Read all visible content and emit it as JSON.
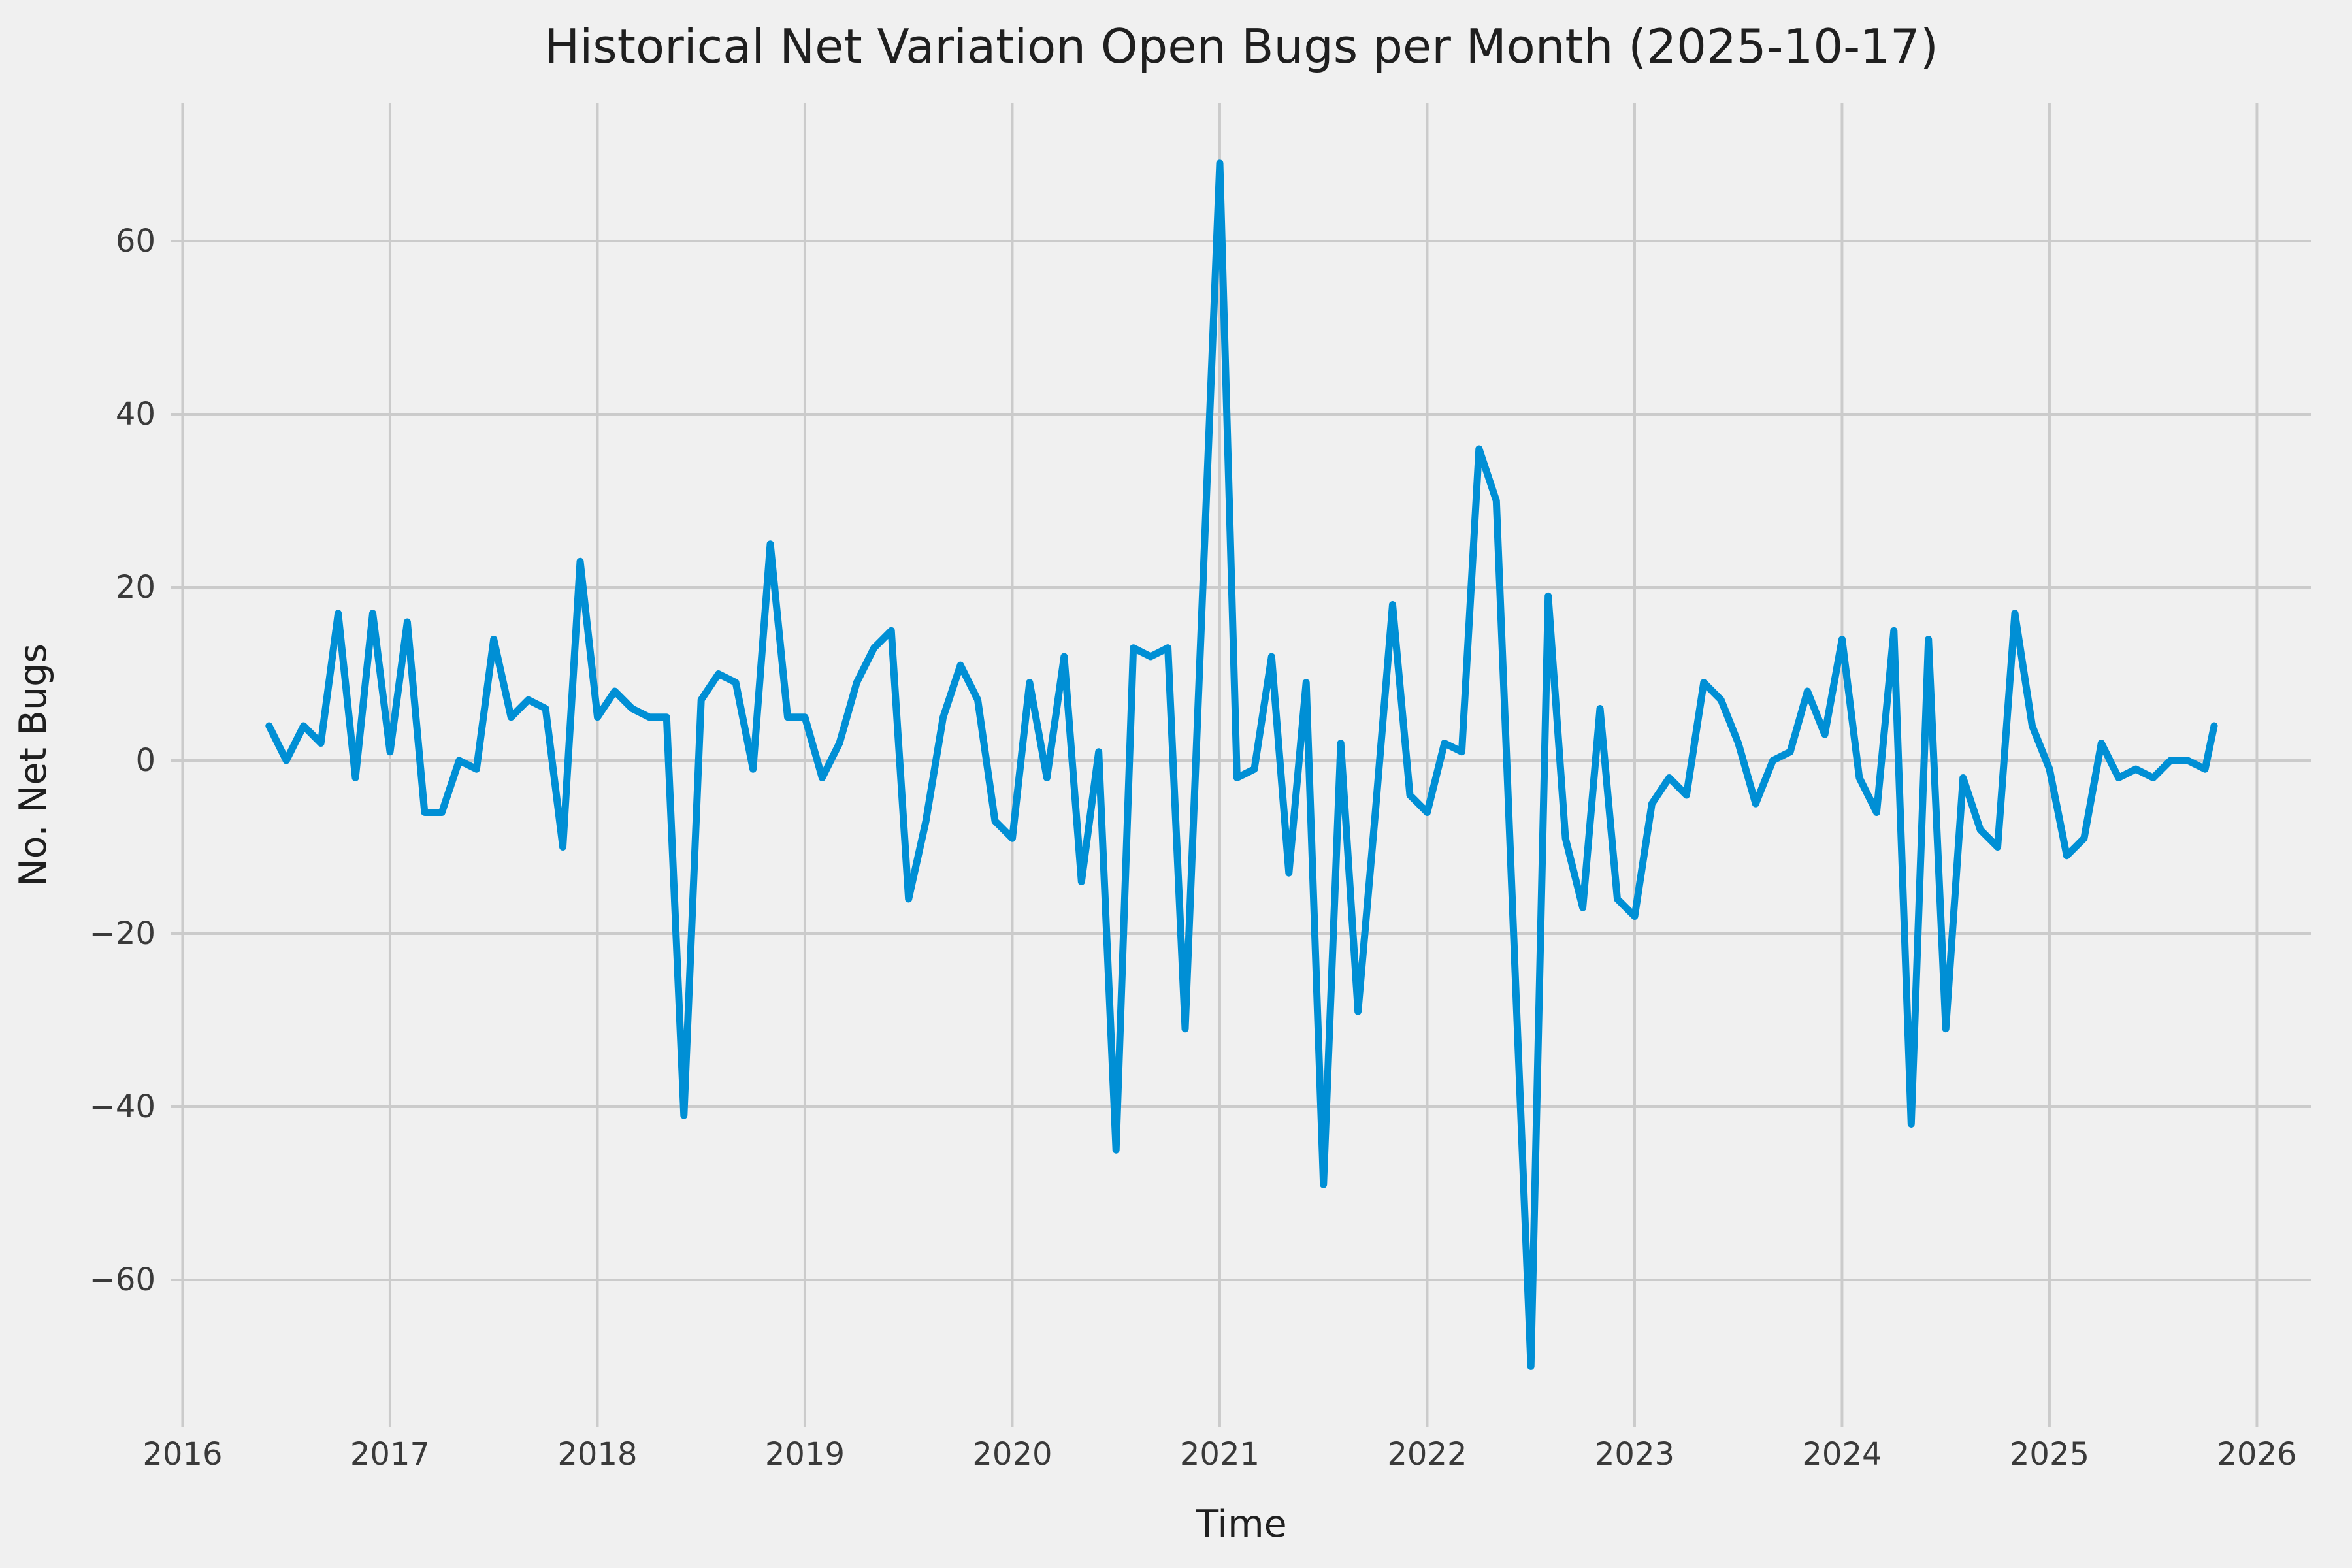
{
  "chart_data": {
    "type": "line",
    "title": "Historical Net Variation Open Bugs per Month (2025-10-17)",
    "xlabel": "Time",
    "ylabel": "No. Net Bugs",
    "x_ticks": [
      "2016",
      "2017",
      "2018",
      "2019",
      "2020",
      "2021",
      "2022",
      "2023",
      "2024",
      "2025",
      "2026"
    ],
    "y_ticks": [
      -60,
      -40,
      -20,
      0,
      20,
      40,
      60
    ],
    "xlim": [
      2015.945,
      2026.26
    ],
    "ylim": [
      -76.98,
      75.92
    ],
    "grid": true,
    "legend_position": "none",
    "background_color": "#f0f0f0",
    "grid_color": "#cbcbcb",
    "line_color": "#008fd5",
    "line_width": 11,
    "series": [
      {
        "name": "net-open-bugs",
        "points": [
          [
            "2016-06",
            4
          ],
          [
            "2016-07",
            0
          ],
          [
            "2016-08",
            4
          ],
          [
            "2016-09",
            2
          ],
          [
            "2016-10",
            17
          ],
          [
            "2016-11",
            -2
          ],
          [
            "2016-12",
            17
          ],
          [
            "2017-01",
            1
          ],
          [
            "2017-02",
            16
          ],
          [
            "2017-03",
            -6
          ],
          [
            "2017-04",
            -6
          ],
          [
            "2017-05",
            0
          ],
          [
            "2017-06",
            -1
          ],
          [
            "2017-07",
            14
          ],
          [
            "2017-08",
            5
          ],
          [
            "2017-09",
            7
          ],
          [
            "2017-10",
            6
          ],
          [
            "2017-11",
            -10
          ],
          [
            "2017-12",
            23
          ],
          [
            "2018-01",
            5
          ],
          [
            "2018-02",
            8
          ],
          [
            "2018-03",
            6
          ],
          [
            "2018-04",
            5
          ],
          [
            "2018-05",
            5
          ],
          [
            "2018-06",
            -41
          ],
          [
            "2018-07",
            7
          ],
          [
            "2018-08",
            10
          ],
          [
            "2018-09",
            9
          ],
          [
            "2018-10",
            -1
          ],
          [
            "2018-11",
            25
          ],
          [
            "2018-12",
            5
          ],
          [
            "2019-01",
            5
          ],
          [
            "2019-02",
            -2
          ],
          [
            "2019-03",
            2
          ],
          [
            "2019-04",
            9
          ],
          [
            "2019-05",
            13
          ],
          [
            "2019-06",
            15
          ],
          [
            "2019-07",
            -16
          ],
          [
            "2019-08",
            -7
          ],
          [
            "2019-09",
            5
          ],
          [
            "2019-10",
            11
          ],
          [
            "2019-11",
            7
          ],
          [
            "2019-12",
            -7
          ],
          [
            "2020-01",
            -9
          ],
          [
            "2020-02",
            9
          ],
          [
            "2020-03",
            -2
          ],
          [
            "2020-04",
            12
          ],
          [
            "2020-05",
            -14
          ],
          [
            "2020-06",
            1
          ],
          [
            "2020-07",
            -45
          ],
          [
            "2020-08",
            13
          ],
          [
            "2020-09",
            12
          ],
          [
            "2020-10",
            13
          ],
          [
            "2020-11",
            -31
          ],
          [
            "2020-12",
            19
          ],
          [
            "2021-01",
            69
          ],
          [
            "2021-02",
            -2
          ],
          [
            "2021-03",
            -1
          ],
          [
            "2021-04",
            12
          ],
          [
            "2021-05",
            -13
          ],
          [
            "2021-06",
            9
          ],
          [
            "2021-07",
            -49
          ],
          [
            "2021-08",
            2
          ],
          [
            "2021-09",
            -29
          ],
          [
            "2021-10",
            -6
          ],
          [
            "2021-11",
            18
          ],
          [
            "2021-12",
            -4
          ],
          [
            "2022-01",
            -6
          ],
          [
            "2022-02",
            2
          ],
          [
            "2022-03",
            1
          ],
          [
            "2022-04",
            36
          ],
          [
            "2022-05",
            30
          ],
          [
            "2022-06",
            -20
          ],
          [
            "2022-07",
            -70
          ],
          [
            "2022-08",
            19
          ],
          [
            "2022-09",
            -9
          ],
          [
            "2022-10",
            -17
          ],
          [
            "2022-11",
            6
          ],
          [
            "2022-12",
            -16
          ],
          [
            "2023-01",
            -18
          ],
          [
            "2023-02",
            -5
          ],
          [
            "2023-03",
            -2
          ],
          [
            "2023-04",
            -4
          ],
          [
            "2023-05",
            9
          ],
          [
            "2023-06",
            7
          ],
          [
            "2023-07",
            2
          ],
          [
            "2023-08",
            -5
          ],
          [
            "2023-09",
            0
          ],
          [
            "2023-10",
            1
          ],
          [
            "2023-11",
            8
          ],
          [
            "2023-12",
            3
          ],
          [
            "2024-01",
            14
          ],
          [
            "2024-02",
            -2
          ],
          [
            "2024-03",
            -6
          ],
          [
            "2024-04",
            15
          ],
          [
            "2024-05",
            -42
          ],
          [
            "2024-06",
            14
          ],
          [
            "2024-07",
            -31
          ],
          [
            "2024-08",
            -2
          ],
          [
            "2024-09",
            -8
          ],
          [
            "2024-10",
            -10
          ],
          [
            "2024-11",
            17
          ],
          [
            "2024-12",
            4
          ],
          [
            "2025-01",
            -1
          ],
          [
            "2025-02",
            -11
          ],
          [
            "2025-03",
            -9
          ],
          [
            "2025-04",
            2
          ],
          [
            "2025-05",
            -2
          ],
          [
            "2025-06",
            -1
          ],
          [
            "2025-07",
            -2
          ],
          [
            "2025-08",
            0
          ],
          [
            "2025-09",
            0
          ],
          [
            "2025-10",
            -1
          ],
          [
            "2025-10-17",
            4
          ]
        ]
      }
    ]
  }
}
